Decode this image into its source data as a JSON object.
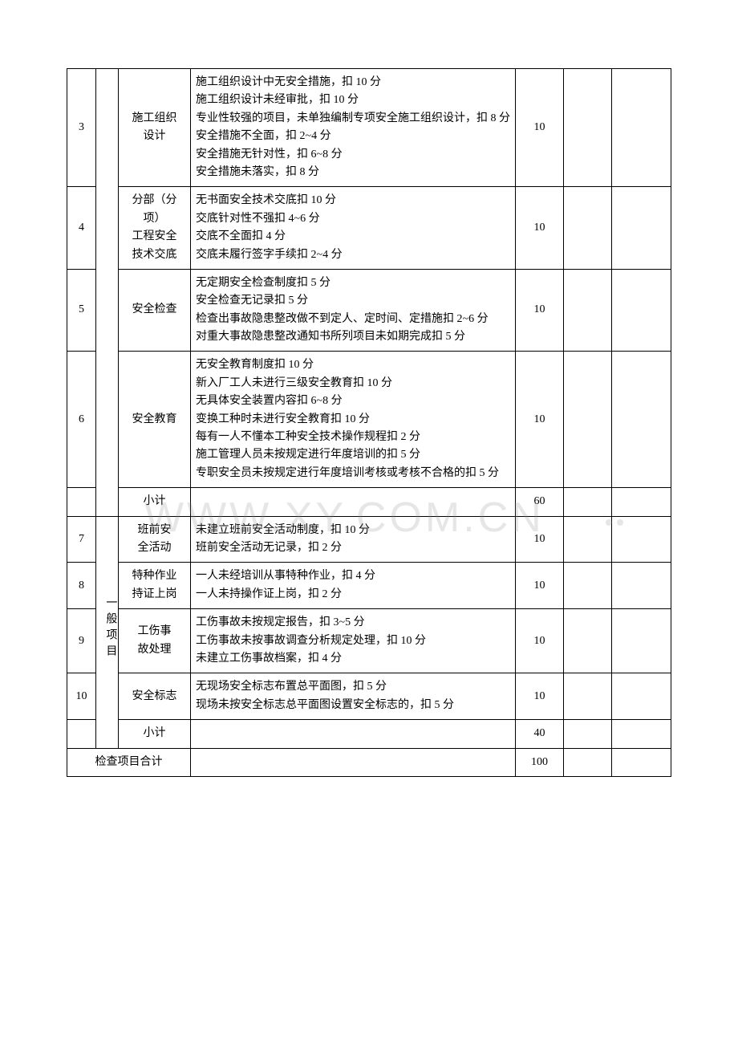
{
  "columns": {
    "idx_width": 36,
    "cat_width": 28,
    "name_width": 90,
    "score_width": 60,
    "e1_width": 60,
    "e2_width": 74
  },
  "watermark": "WWW.XY.COM.CN",
  "categories": {
    "general": "一般项目"
  },
  "rows": [
    {
      "idx": "3",
      "name": "施工组织\n设计",
      "desc": "施工组织设计中无安全措施，扣 10 分\n施工组织设计未经审批，扣 10 分\n专业性较强的项目，未单独编制专项安全施工组织设计，扣 8 分\n安全措施不全面，扣 2~4 分\n安全措施无针对性，扣 6~8 分\n安全措施未落实，扣 8 分",
      "score": "10"
    },
    {
      "idx": "4",
      "name": "分部（分项）\n工程安全\n技术交底",
      "desc": "无书面安全技术交底扣 10 分\n交底针对性不强扣 4~6 分\n交底不全面扣 4 分\n交底未履行签字手续扣 2~4 分",
      "score": "10"
    },
    {
      "idx": "5",
      "name": "安全检查",
      "desc": "无定期安全检查制度扣 5 分\n安全检查无记录扣 5 分\n检查出事故隐患整改做不到定人、定时间、定措施扣 2~6 分\n对重大事故隐患整改通知书所列项目未如期完成扣 5 分",
      "score": "10"
    },
    {
      "idx": "6",
      "name": "安全教育",
      "desc": "无安全教育制度扣 10 分\n新入厂工人未进行三级安全教育扣 10 分\n无具体安全装置内容扣 6~8 分\n变换工种时未进行安全教育扣 10 分\n每有一人不懂本工种安全技术操作规程扣 2 分\n施工管理人员未按规定进行年度培训的扣 5 分\n专职安全员未按规定进行年度培训考核或考核不合格的扣 5 分",
      "score": "10"
    },
    {
      "subtotal1_label": "小计",
      "subtotal1_score": "60"
    },
    {
      "idx": "7",
      "name": "班前安\n全活动",
      "desc": "未建立班前安全活动制度，扣 10 分\n班前安全活动无记录，扣 2 分",
      "score": "10"
    },
    {
      "idx": "8",
      "name": "特种作业\n持证上岗",
      "desc": "一人未经培训从事特种作业，扣 4 分\n一人未持操作证上岗，扣 2 分",
      "score": "10"
    },
    {
      "idx": "9",
      "name": "工伤事\n故处理",
      "desc": "工伤事故未按规定报告，扣 3~5 分\n工伤事故未按事故调查分析规定处理，扣 10 分\n未建立工伤事故档案，扣 4 分",
      "score": "10"
    },
    {
      "idx": "10",
      "name": "安全标志",
      "desc": "无现场安全标志布置总平面图，扣 5 分\n现场未按安全标志总平面图设置安全标志的，扣 5 分",
      "score": "10"
    },
    {
      "subtotal2_label": "小计",
      "subtotal2_score": "40"
    },
    {
      "total_label": "检查项目合计",
      "total_score": "100"
    }
  ],
  "styling": {
    "font_family": "SimSun",
    "font_size_pt": 10.5,
    "line_height": 1.6,
    "border_color": "#000000",
    "background": "#ffffff",
    "text_color": "#000000",
    "watermark_color": "rgba(140,140,140,0.22)",
    "watermark_fontsize": 52
  }
}
